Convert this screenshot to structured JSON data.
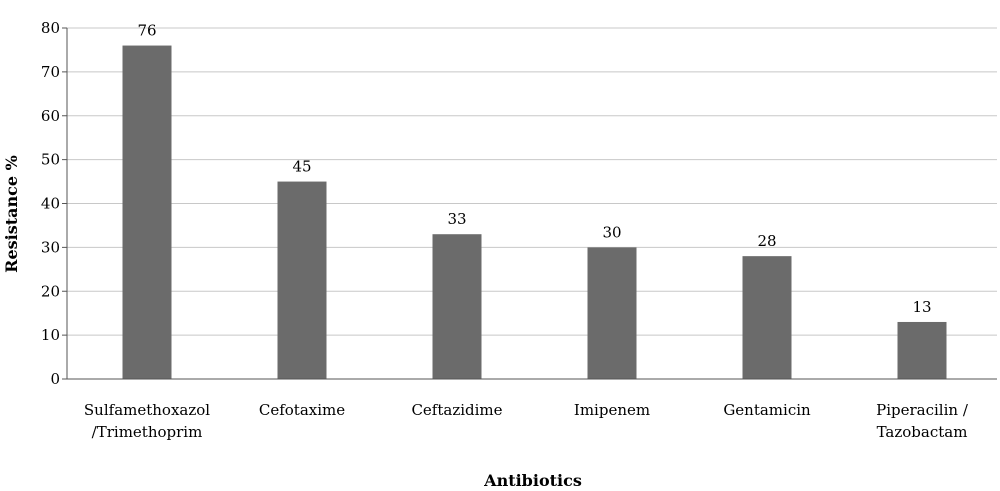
{
  "chart_data": {
    "type": "bar",
    "categories": [
      [
        "Sulfamethoxazol",
        "/Trimethoprim"
      ],
      [
        "Cefotaxime"
      ],
      [
        "Ceftazidime"
      ],
      [
        "Imipenem"
      ],
      [
        "Gentamicin"
      ],
      [
        "Piperacilin /",
        "Tazobactam"
      ]
    ],
    "values": [
      76,
      45,
      33,
      30,
      28,
      13
    ],
    "data_labels": [
      "76",
      "45",
      "33",
      "30",
      "28",
      "13"
    ],
    "xlabel": "Antibiotics",
    "ylabel": "Resistance %",
    "ylim": [
      0,
      80
    ],
    "yticks": [
      0,
      10,
      20,
      30,
      40,
      50,
      60,
      70,
      80
    ],
    "grid": true,
    "legend": "none",
    "colors": {
      "bar": "#6b6b6b",
      "grid": "#c8c8c8",
      "axis": "#555555"
    }
  }
}
